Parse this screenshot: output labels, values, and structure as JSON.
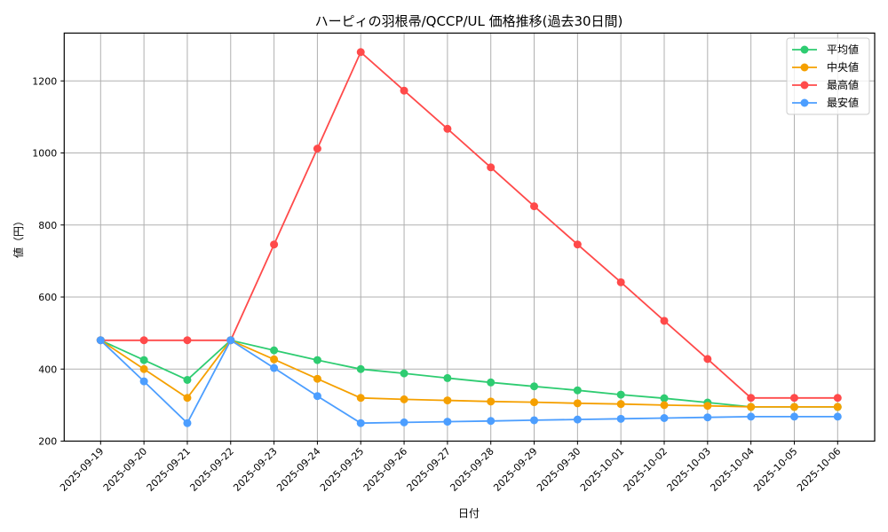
{
  "chart_data": {
    "type": "line",
    "title": "ハーピィの羽根帚/QCCP/UL 価格推移(過去30日間)",
    "xlabel": "日付",
    "ylabel": "値（円）",
    "ylim": [
      198,
      1333
    ],
    "yticks": [
      200,
      400,
      600,
      800,
      1000,
      1200
    ],
    "grid": true,
    "legend_position": "upper right",
    "categories": [
      "2025-09-19",
      "2025-09-20",
      "2025-09-21",
      "2025-09-22",
      "2025-09-23",
      "2025-09-24",
      "2025-09-25",
      "2025-09-26",
      "2025-09-27",
      "2025-09-28",
      "2025-09-29",
      "2025-09-30",
      "2025-10-01",
      "2025-10-02",
      "2025-10-03",
      "2025-10-04",
      "2025-10-05",
      "2025-10-06"
    ],
    "series": [
      {
        "name": "平均値",
        "color": "#2ecc71",
        "values": [
          480,
          425,
          370,
          480,
          452,
          425,
          400,
          388,
          375,
          363,
          352,
          341,
          329,
          319,
          307,
          295,
          295,
          295
        ]
      },
      {
        "name": "中央値",
        "color": "#f5a000",
        "values": [
          480,
          400,
          320,
          480,
          427,
          373,
          320,
          316,
          313,
          310,
          308,
          305,
          303,
          300,
          298,
          295,
          295,
          295
        ]
      },
      {
        "name": "最高値",
        "color": "#ff4a4a",
        "values": [
          480,
          480,
          480,
          480,
          746,
          1012,
          1280,
          1173,
          1067,
          960,
          852,
          746,
          641,
          534,
          428,
          320,
          320,
          320
        ]
      },
      {
        "name": "最安値",
        "color": "#4c9eff",
        "values": [
          480,
          366,
          250,
          480,
          403,
          325,
          250,
          252,
          254,
          256,
          258,
          260,
          262,
          264,
          266,
          268,
          268,
          268
        ]
      }
    ]
  }
}
